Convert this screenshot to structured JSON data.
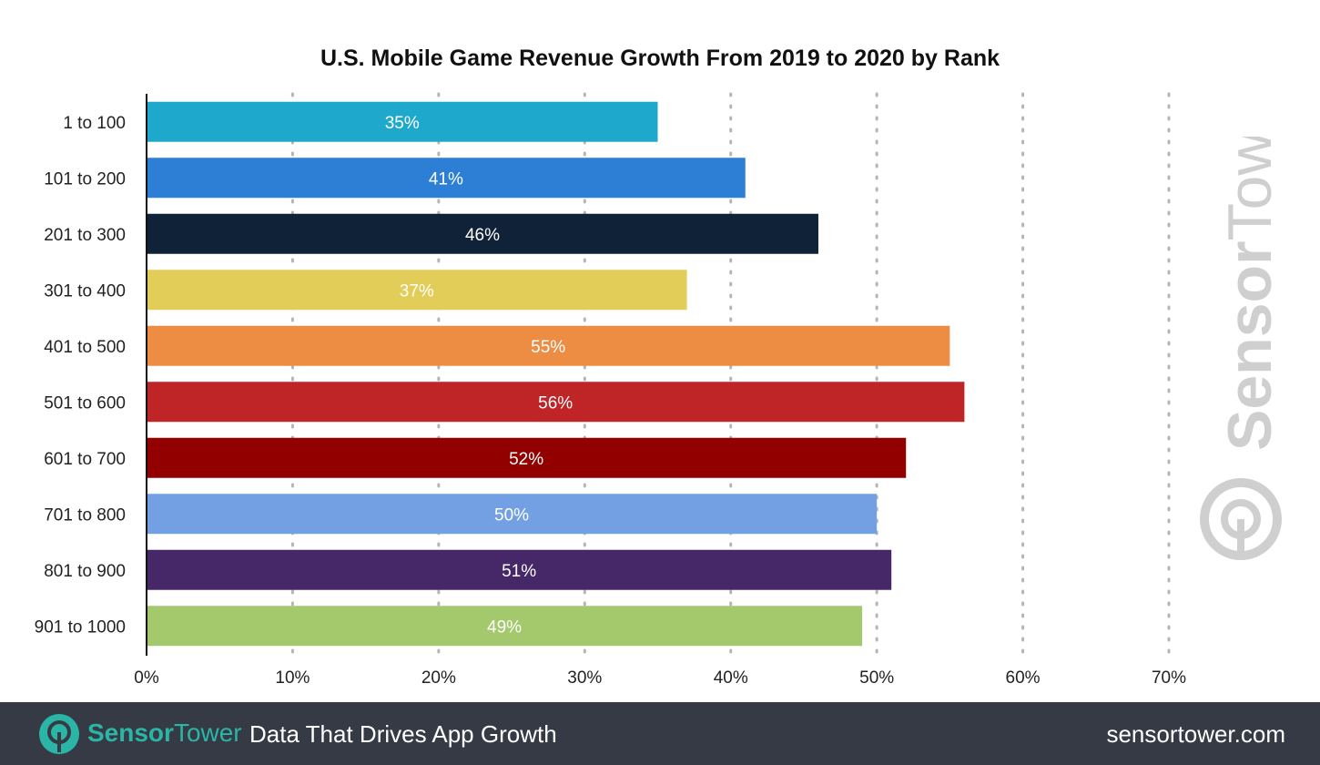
{
  "chart_data": {
    "type": "bar",
    "orientation": "horizontal",
    "title": "U.S. Mobile Game Revenue Growth From 2019 to 2020 by Rank",
    "xlabel": "",
    "ylabel": "",
    "categories": [
      "1 to 100",
      "101 to 200",
      "201 to 300",
      "301 to 400",
      "401 to 500",
      "501 to 600",
      "601 to 700",
      "701 to 800",
      "801 to 900",
      "901 to 1000"
    ],
    "values": [
      35,
      41,
      46,
      37,
      55,
      56,
      52,
      50,
      51,
      49
    ],
    "data_labels": [
      "35%",
      "41%",
      "46%",
      "37%",
      "55%",
      "56%",
      "52%",
      "50%",
      "51%",
      "49%"
    ],
    "colors": [
      "#1ea9cc",
      "#2d7fd6",
      "#0f2238",
      "#e1cd58",
      "#ec8d43",
      "#bf2427",
      "#920000",
      "#73a0e3",
      "#462869",
      "#a4c96c"
    ],
    "xlim": [
      0,
      70
    ],
    "xticks": [
      "0%",
      "10%",
      "20%",
      "30%",
      "40%",
      "50%",
      "60%",
      "70%"
    ],
    "grid": "vertical dotted",
    "legend": "none"
  },
  "watermark": "SensorTower",
  "footer": {
    "brand_a": "Sensor",
    "brand_b": "Tower",
    "tagline": "Data That Drives App Growth",
    "url": "sensortower.com"
  }
}
